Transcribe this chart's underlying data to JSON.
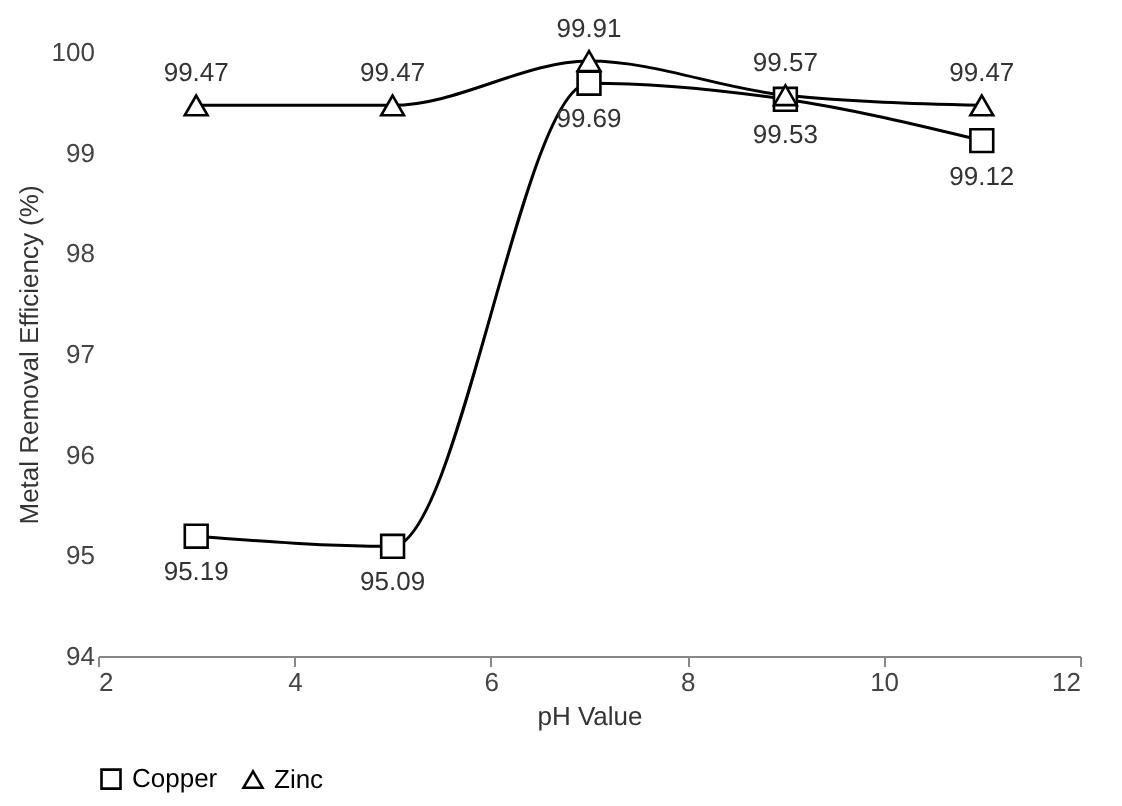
{
  "chart_data": {
    "type": "line",
    "xlabel": "pH Value",
    "ylabel": "Metal Removal Efficiency (%)",
    "x": [
      3,
      5,
      7,
      9,
      11
    ],
    "series": [
      {
        "name": "Copper",
        "color": "#000000",
        "marker": "square",
        "values": [
          95.19,
          95.09,
          99.69,
          99.53,
          99.12
        ]
      },
      {
        "name": "Zinc",
        "color": "#000000",
        "marker": "triangle",
        "values": [
          99.47,
          99.47,
          99.91,
          99.57,
          99.47
        ]
      }
    ],
    "xlim": [
      2,
      12
    ],
    "xticks": [
      2,
      4,
      6,
      8,
      10,
      12
    ],
    "ylim": [
      94,
      100
    ],
    "yticks": [
      94,
      95,
      96,
      97,
      98,
      99,
      100
    ],
    "data_labels": true,
    "grid": false,
    "legend": "bottom",
    "line_style": "solid"
  }
}
